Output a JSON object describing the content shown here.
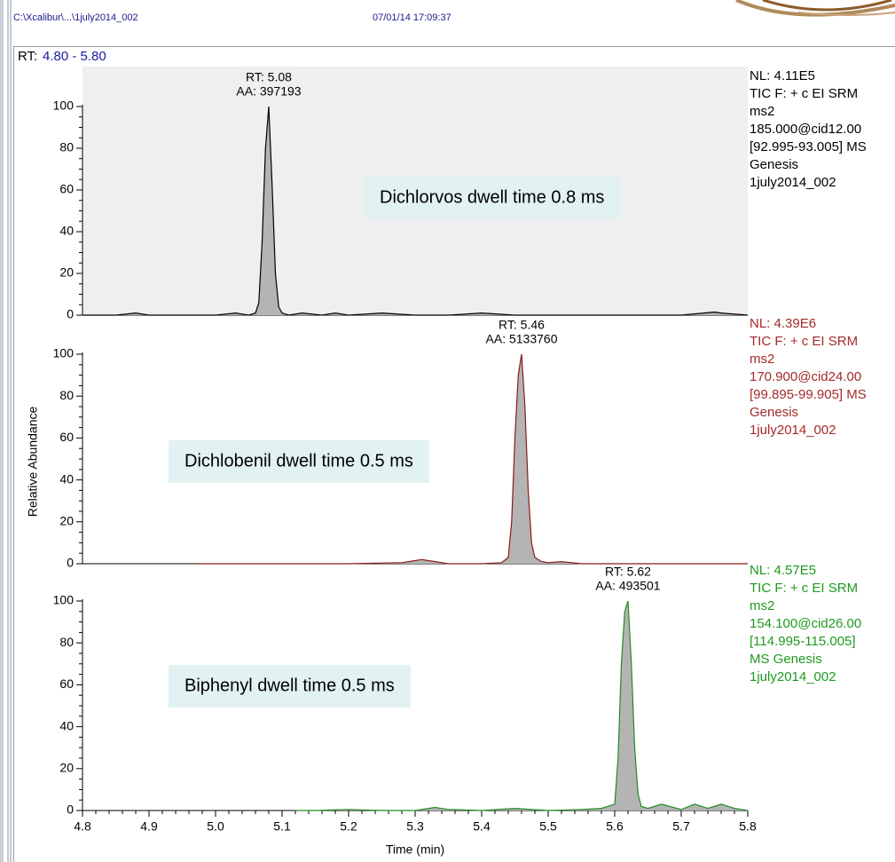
{
  "header": {
    "file": "C:\\Xcalibur\\...\\1july2014_002",
    "datetime": "07/01/14 17:09:37"
  },
  "rt_range": {
    "label": "RT:",
    "range": "4.80 - 5.80"
  },
  "y_axis_label": "Relative Abundance",
  "x_axis_label": "Time (min)",
  "chart_data": [
    {
      "type": "line",
      "color": "#000000",
      "text_color": "#000000",
      "x": [
        4.8,
        4.85,
        4.88,
        4.9,
        4.95,
        5.0,
        5.03,
        5.05,
        5.06,
        5.065,
        5.07,
        5.075,
        5.08,
        5.085,
        5.09,
        5.095,
        5.1,
        5.11,
        5.13,
        5.16,
        5.18,
        5.2,
        5.25,
        5.3,
        5.35,
        5.4,
        5.45,
        5.5,
        5.6,
        5.7,
        5.75,
        5.76,
        5.8
      ],
      "values": [
        0,
        0,
        1,
        0,
        0,
        0,
        1,
        0,
        1,
        6,
        35,
        80,
        100,
        62,
        20,
        4,
        1,
        0,
        1,
        0,
        1,
        0,
        1,
        0,
        0,
        1,
        0,
        0,
        0,
        0,
        1.5,
        1,
        0
      ],
      "xlim": [
        4.8,
        5.8
      ],
      "ylim": [
        0,
        100
      ],
      "yticks": [
        0,
        20,
        40,
        60,
        80,
        100
      ],
      "peak_label": {
        "x": 5.08,
        "rt": "RT: 5.08",
        "aa": "AA: 397193"
      },
      "annotation": "Dichlorvos dwell time 0.8 ms",
      "info": [
        "NL: 4.11E5",
        "TIC F: + c EI SRM",
        "ms2",
        "185.000@cid12.00",
        "[92.995-93.005]  MS",
        "Genesis",
        "1july2014_002"
      ]
    },
    {
      "type": "line",
      "color": "#8b1a1a",
      "text_color": "#a52a2a",
      "x": [
        4.97,
        5.0,
        5.1,
        5.2,
        5.28,
        5.3,
        5.31,
        5.33,
        5.35,
        5.4,
        5.43,
        5.44,
        5.445,
        5.45,
        5.455,
        5.46,
        5.465,
        5.47,
        5.475,
        5.48,
        5.49,
        5.5,
        5.52,
        5.55,
        5.6,
        5.7,
        5.8
      ],
      "values": [
        0,
        0,
        0,
        0,
        0.5,
        1.5,
        2,
        1,
        0,
        0,
        0.5,
        3,
        20,
        60,
        90,
        100,
        75,
        35,
        10,
        3,
        1,
        0.5,
        1,
        0,
        0,
        0,
        0
      ],
      "xlim": [
        4.8,
        5.8
      ],
      "ylim": [
        0,
        100
      ],
      "yticks": [
        0,
        20,
        40,
        60,
        80,
        100
      ],
      "peak_label": {
        "x": 5.46,
        "rt": "RT: 5.46",
        "aa": "AA: 5133760"
      },
      "annotation": "Dichlobenil dwell time 0.5 ms",
      "info": [
        "NL: 4.39E6",
        "TIC F: + c EI SRM",
        "ms2",
        "170.900@cid24.00",
        "[99.895-99.905]  MS",
        "Genesis",
        "1july2014_002"
      ]
    },
    {
      "type": "line",
      "color": "#228b22",
      "text_color": "#1f9a1f",
      "x": [
        5.12,
        5.15,
        5.2,
        5.25,
        5.3,
        5.33,
        5.35,
        5.4,
        5.45,
        5.5,
        5.55,
        5.58,
        5.6,
        5.605,
        5.61,
        5.615,
        5.62,
        5.625,
        5.63,
        5.635,
        5.64,
        5.65,
        5.67,
        5.7,
        5.72,
        5.74,
        5.76,
        5.78,
        5.8
      ],
      "values": [
        0,
        0,
        0.5,
        0,
        0,
        1.5,
        0.5,
        0,
        1,
        0,
        0.5,
        1,
        3,
        25,
        70,
        95,
        100,
        70,
        30,
        8,
        2,
        1,
        3,
        0.5,
        3,
        1,
        3,
        1,
        0
      ],
      "xlim": [
        4.8,
        5.8
      ],
      "ylim": [
        0,
        100
      ],
      "yticks": [
        0,
        20,
        40,
        60,
        80,
        100
      ],
      "xticks": [
        4.8,
        4.9,
        {
          "value": 5.0,
          "label": "5.0"
        },
        5.1,
        5.2,
        5.3,
        5.4,
        5.5,
        5.6,
        5.7,
        5.8
      ],
      "peak_label": {
        "x": 5.62,
        "rt": "RT: 5.62",
        "aa": "AA: 493501"
      },
      "annotation": "Biphenyl dwell time 0.5 ms",
      "info": [
        "NL: 4.57E5",
        "TIC F: + c EI SRM",
        "ms2",
        "154.100@cid26.00",
        "[114.995-115.005]",
        "MS  Genesis",
        "1july2014_002"
      ]
    }
  ]
}
